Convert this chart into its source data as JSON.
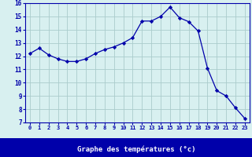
{
  "hours": [
    0,
    1,
    2,
    3,
    4,
    5,
    6,
    7,
    8,
    9,
    10,
    11,
    12,
    13,
    14,
    15,
    16,
    17,
    18,
    19,
    20,
    21,
    22,
    23
  ],
  "temps": [
    12.2,
    12.6,
    12.1,
    11.8,
    11.6,
    11.6,
    11.8,
    12.2,
    12.5,
    12.7,
    13.0,
    13.4,
    14.65,
    14.65,
    15.0,
    15.7,
    14.9,
    14.6,
    13.9,
    11.1,
    9.4,
    9.0,
    8.1,
    7.3
  ],
  "ylim": [
    7,
    16
  ],
  "yticks": [
    7,
    8,
    9,
    10,
    11,
    12,
    13,
    14,
    15,
    16
  ],
  "xticks": [
    0,
    1,
    2,
    3,
    4,
    5,
    6,
    7,
    8,
    9,
    10,
    11,
    12,
    13,
    14,
    15,
    16,
    17,
    18,
    19,
    20,
    21,
    22,
    23
  ],
  "xlabel": "Graphe des températures (°c)",
  "line_color": "#0000aa",
  "marker_color": "#0000aa",
  "bg_color": "#d8f0f0",
  "grid_color": "#aacccc",
  "axis_label_color": "#ffffff",
  "tick_label_color": "#0000aa",
  "border_color": "#0000aa",
  "xlabel_bg_color": "#0000aa",
  "xlabel_text_color": "#ffffff"
}
